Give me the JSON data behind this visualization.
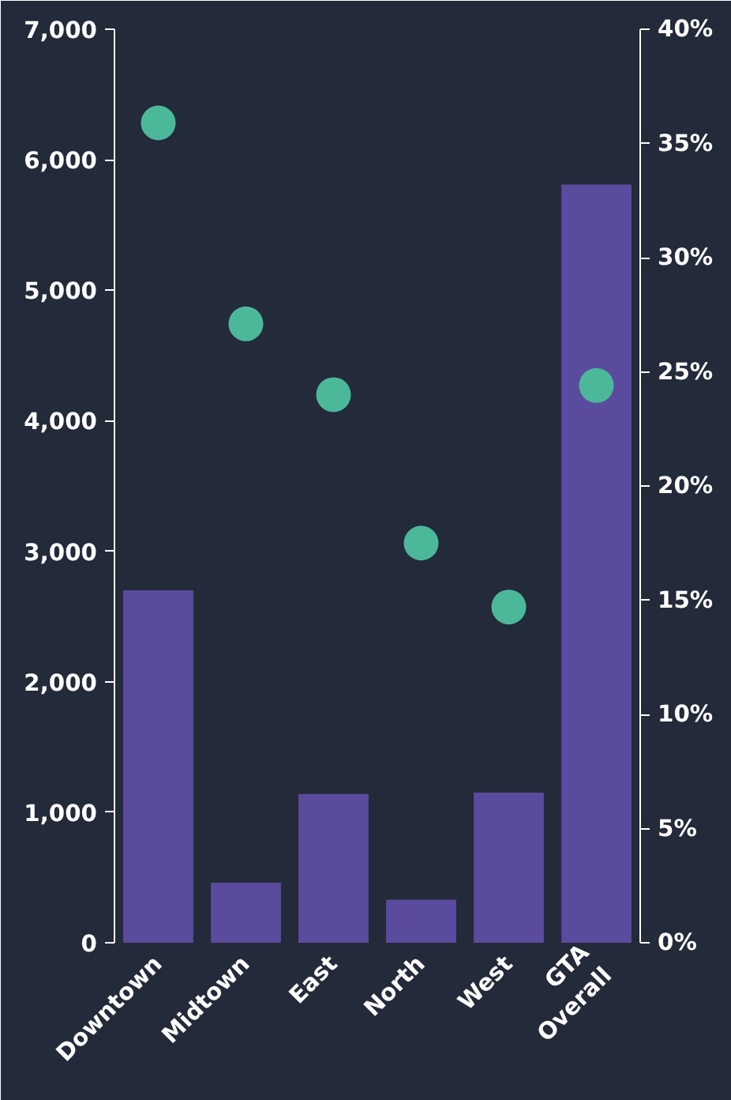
{
  "chart_data": {
    "type": "bar",
    "categories": [
      "Downtown",
      "Midtown",
      "East",
      "North",
      "West",
      "GTA Overall"
    ],
    "series": [
      {
        "color": "#5b4b9e",
        "values": [
          2700,
          460,
          1140,
          330,
          1150,
          5810
        ]
      },
      {
        "type": "scatter",
        "axis": "y2",
        "color": "#4cb89a",
        "marker": "circle",
        "values": [
          35.9,
          27.1,
          24.0,
          17.5,
          14.7,
          24.4
        ]
      }
    ],
    "ylim": [
      0,
      7000
    ],
    "yticks": [
      0,
      {
        "value": 1000,
        "label": "1,000"
      },
      {
        "value": 2000,
        "label": "2,000"
      },
      {
        "value": 3000,
        "label": "3,000"
      },
      {
        "value": 4000,
        "label": "4,000"
      },
      {
        "value": 5000,
        "label": "5,000"
      },
      {
        "value": 6000,
        "label": "6,000"
      },
      {
        "value": 7000,
        "label": "7,000"
      }
    ],
    "y2lim": [
      0,
      40
    ],
    "y2ticks": [
      {
        "value": 0,
        "label": "0%"
      },
      {
        "value": 5,
        "label": "5%"
      },
      {
        "value": 10,
        "label": "10%"
      },
      {
        "value": 15,
        "label": "15%"
      },
      {
        "value": 20,
        "label": "20%"
      },
      {
        "value": 25,
        "label": "25%"
      },
      {
        "value": 30,
        "label": "30%"
      },
      {
        "value": 35,
        "label": "35%"
      },
      {
        "value": 40,
        "label": "40%"
      }
    ],
    "grid": false
  }
}
